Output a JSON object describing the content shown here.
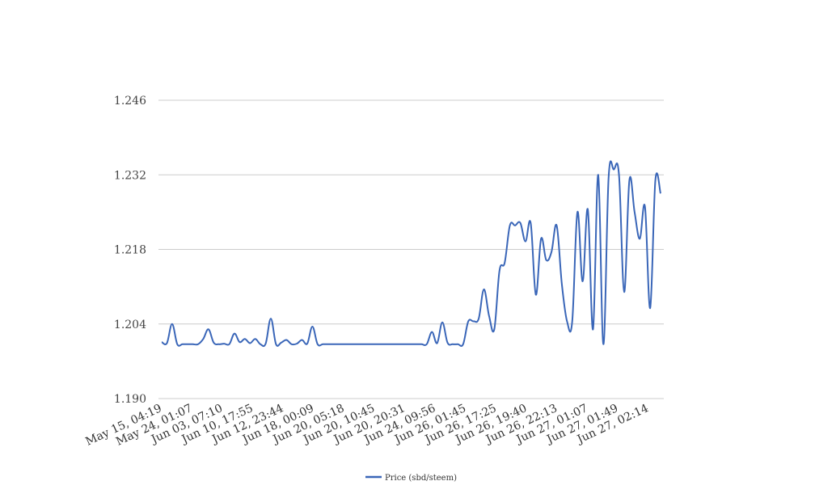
{
  "chart_data": {
    "type": "line",
    "title": "",
    "xlabel": "",
    "ylabel": "",
    "ylim": [
      1.19,
      1.246
    ],
    "yticks": [
      "1.246",
      "1.232",
      "1.218",
      "1.204",
      "1.190"
    ],
    "yticks_values": [
      1.246,
      1.232,
      1.218,
      1.204,
      1.19
    ],
    "x_tick_labels": [
      "May 15, 04:19",
      "May 24, 01:07",
      "Jun 03, 07:10",
      "Jun 10, 17:55",
      "Jun 12, 23:44",
      "Jun 18, 00:09",
      "Jun 20, 05:18",
      "Jun 20, 10:45",
      "Jun 20, 20:31",
      "Jun 24, 09:56",
      "Jun 26, 01:45",
      "Jun 26, 17:25",
      "Jun 26, 19:40",
      "Jun 26, 22:13",
      "Jun 27, 01:07",
      "Jun 27, 01:49",
      "Jun 27, 02:14"
    ],
    "grid": true,
    "legend_position": "bottom",
    "series": [
      {
        "name": "Price (sbd/steem)",
        "color": "#3a66b8",
        "values": [
          1.2006,
          1.2004,
          1.204,
          1.2002,
          1.2002,
          1.2002,
          1.2002,
          1.2002,
          1.2012,
          1.203,
          1.2005,
          1.2002,
          1.2003,
          1.2002,
          1.2022,
          1.2006,
          1.2012,
          1.2004,
          1.2012,
          1.2002,
          1.2003,
          1.205,
          1.2002,
          1.2005,
          1.201,
          1.2002,
          1.2003,
          1.201,
          1.2003,
          1.2035,
          1.2002,
          1.2002,
          1.2002,
          1.2002,
          1.2002,
          1.2002,
          1.2002,
          1.2002,
          1.2002,
          1.2002,
          1.2002,
          1.2002,
          1.2002,
          1.2002,
          1.2002,
          1.2002,
          1.2002,
          1.2002,
          1.2002,
          1.2002,
          1.2002,
          1.2002,
          1.2025,
          1.2004,
          1.2043,
          1.2005,
          1.2002,
          1.2002,
          1.2002,
          1.2045,
          1.2045,
          1.205,
          1.2105,
          1.2055,
          1.203,
          1.214,
          1.2155,
          1.2225,
          1.2225,
          1.223,
          1.2195,
          1.223,
          1.2095,
          1.22,
          1.216,
          1.2175,
          1.2225,
          1.2115,
          1.2045,
          1.2045,
          1.225,
          1.212,
          1.2255,
          1.203,
          1.232,
          1.2002,
          1.2315,
          1.233,
          1.232,
          1.21,
          1.231,
          1.225,
          1.22,
          1.226,
          1.207,
          1.231,
          1.2285
        ]
      }
    ]
  }
}
